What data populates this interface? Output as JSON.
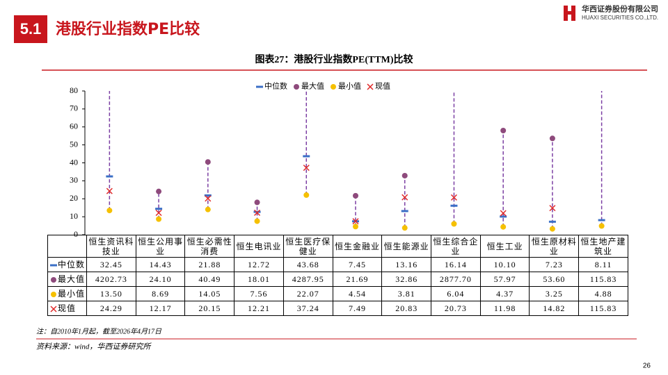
{
  "header": {
    "section": "5.1",
    "title": "港股行业指数PE比较",
    "company": "华西证券股份有限公司",
    "company_en": "HUAXI SECURITIES CO.,LTD."
  },
  "chart_data": {
    "type": "range_dot",
    "title": "图表27：港股行业指数PE(TTM)比较",
    "categories": [
      "恒生资讯科技业",
      "恒生公用事业",
      "恒生必需性消费",
      "恒生电讯业",
      "恒生医疗保健业",
      "恒生金融业",
      "恒生能源业",
      "恒生综合企业",
      "恒生工业",
      "恒生原材料业",
      "恒生地产建筑业"
    ],
    "series": [
      {
        "name": "中位数",
        "marker": "dash",
        "color": "#3b6fc6",
        "values": [
          32.45,
          14.43,
          21.88,
          12.72,
          43.68,
          7.45,
          13.16,
          16.14,
          10.1,
          7.23,
          8.11
        ],
        "value_labels": [
          "32.45",
          "14.43",
          "21.88",
          "12.72",
          "43.68",
          "7.45",
          "13.16",
          "16.14",
          "10.10",
          "7.23",
          "8.11"
        ]
      },
      {
        "name": "最大值",
        "marker": "circle",
        "color": "#8e4a7c",
        "values": [
          4202.73,
          24.1,
          40.49,
          18.01,
          4287.95,
          21.69,
          32.86,
          2877.7,
          57.97,
          53.6,
          115.83
        ],
        "value_labels": [
          "4202.73",
          "24.10",
          "40.49",
          "18.01",
          "4287.95",
          "21.69",
          "32.86",
          "2877.70",
          "57.97",
          "53.60",
          "115.83"
        ]
      },
      {
        "name": "最小值",
        "marker": "circle",
        "color": "#f5c000",
        "values": [
          13.5,
          8.69,
          14.05,
          7.56,
          22.07,
          4.54,
          3.81,
          6.04,
          4.37,
          3.25,
          4.88
        ],
        "value_labels": [
          "13.50",
          "8.69",
          "14.05",
          "7.56",
          "22.07",
          "4.54",
          "3.81",
          "6.04",
          "4.37",
          "3.25",
          "4.88"
        ]
      },
      {
        "name": "现值",
        "marker": "x",
        "color": "#e02828",
        "values": [
          24.29,
          12.17,
          20.15,
          12.21,
          37.24,
          7.49,
          20.83,
          20.73,
          11.98,
          14.82,
          115.83
        ],
        "value_labels": [
          "24.29",
          "12.17",
          "20.15",
          "12.21",
          "37.24",
          "7.49",
          "20.83",
          "20.73",
          "11.98",
          "14.82",
          "115.83"
        ]
      }
    ],
    "range_color": "#7b3fa3",
    "ylim": [
      0,
      80
    ],
    "yticks": [
      0,
      10,
      20,
      30,
      40,
      50,
      60,
      70,
      80
    ]
  },
  "note": "注：自2010年1月起，截至2026年4月17日",
  "source": "资料来源：wind，华西证券研究所",
  "page": "26"
}
